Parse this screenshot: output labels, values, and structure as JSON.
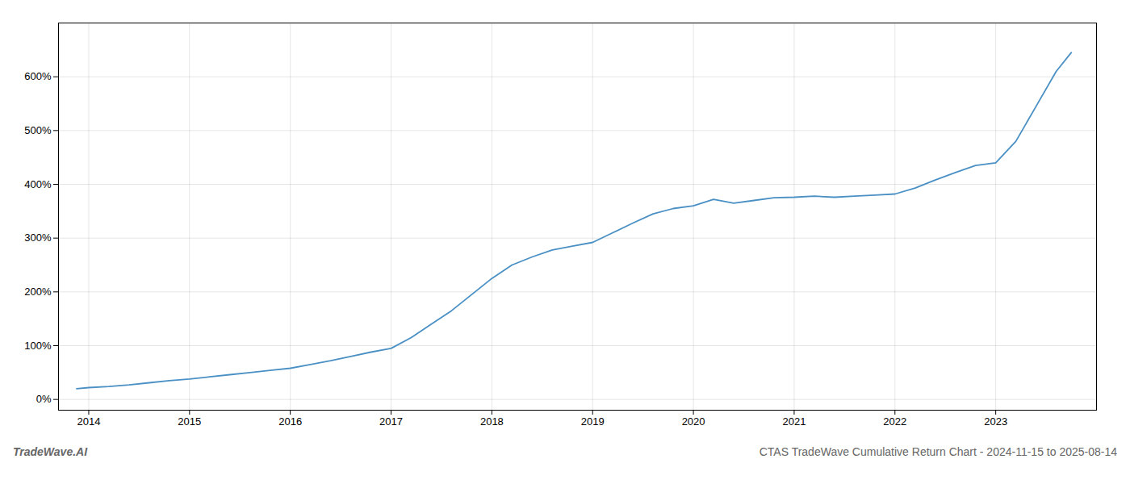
{
  "chart_data": {
    "type": "line",
    "title": "CTAS TradeWave Cumulative Return Chart - 2024-11-15 to 2025-08-14",
    "annotations": [
      {
        "text": "TradeWave.AI"
      }
    ],
    "color": "#4a90c4",
    "x": [
      2013.88,
      2014.0,
      2014.2,
      2014.4,
      2014.6,
      2014.8,
      2015.0,
      2015.2,
      2015.4,
      2015.6,
      2015.8,
      2016.0,
      2016.2,
      2016.4,
      2016.6,
      2016.8,
      2017.0,
      2017.2,
      2017.4,
      2017.6,
      2017.8,
      2018.0,
      2018.2,
      2018.4,
      2018.6,
      2018.8,
      2019.0,
      2019.2,
      2019.4,
      2019.6,
      2019.8,
      2020.0,
      2020.2,
      2020.4,
      2020.6,
      2020.8,
      2021.0,
      2021.2,
      2021.4,
      2021.6,
      2021.8,
      2022.0,
      2022.2,
      2022.4,
      2022.6,
      2022.8,
      2023.0,
      2023.2,
      2023.4,
      2023.6,
      2023.75
    ],
    "values": [
      20,
      22,
      24,
      27,
      31,
      35,
      38,
      42,
      46,
      50,
      54,
      58,
      65,
      72,
      80,
      88,
      95,
      115,
      140,
      165,
      195,
      225,
      250,
      265,
      278,
      285,
      292,
      310,
      328,
      345,
      355,
      360,
      372,
      365,
      370,
      375,
      376,
      378,
      376,
      378,
      380,
      382,
      393,
      408,
      422,
      435,
      440,
      480,
      545,
      610,
      645
    ],
    "xlim": [
      2013.7,
      2024.0
    ],
    "ylim": [
      -20,
      700
    ],
    "xticks": [
      2014,
      2015,
      2016,
      2017,
      2018,
      2019,
      2020,
      2021,
      2022,
      2023
    ],
    "yticks": [
      {
        "value": 0,
        "label": "0%"
      },
      {
        "value": 100,
        "label": "100%"
      },
      {
        "value": 200,
        "label": "200%"
      },
      {
        "value": 300,
        "label": "300%"
      },
      {
        "value": 400,
        "label": "400%"
      },
      {
        "value": 500,
        "label": "500%"
      },
      {
        "value": 600,
        "label": "600%"
      }
    ],
    "grid": true
  }
}
